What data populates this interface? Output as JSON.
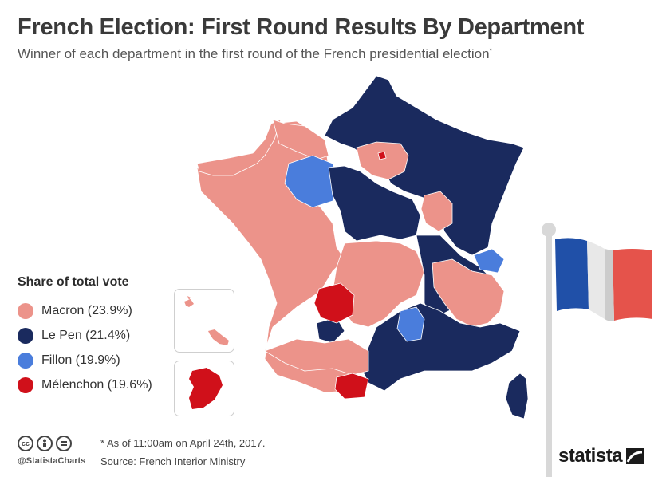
{
  "header": {
    "title": "French Election: First Round Results By Department",
    "subtitle": "Winner of each department in the first round of the French presidential election",
    "subtitle_mark": "*"
  },
  "legend": {
    "title": "Share of total vote",
    "items": [
      {
        "label": "Macron (23.9%)",
        "color": "#ec938a"
      },
      {
        "label": "Le Pen (21.4%)",
        "color": "#1a2a5e"
      },
      {
        "label": "Fillon (19.9%)",
        "color": "#4a7ddc"
      },
      {
        "label": "Mélenchon (19.6%)",
        "color": "#d0101a"
      }
    ]
  },
  "colors": {
    "macron": "#ec938a",
    "lepen": "#1a2a5e",
    "fillon": "#4a7ddc",
    "melenchon": "#d0101a",
    "flag_blue": "#2050a8",
    "flag_white": "#e8e8e8",
    "flag_red": "#e5534b"
  },
  "footer": {
    "note": "* As of 11:00am on April 24th, 2017.",
    "source": "Source: French Interior Ministry",
    "handle": "@StatistaCharts",
    "brand": "statista",
    "license_icons": [
      "cc-icon",
      "attribution-icon",
      "no-derivatives-icon"
    ]
  }
}
